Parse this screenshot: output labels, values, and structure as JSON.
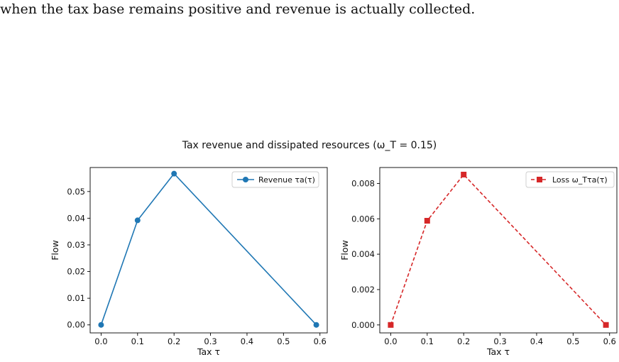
{
  "document": {
    "text_line": "when the tax base remains positive and revenue is actually collected."
  },
  "figure": {
    "title": "Tax revenue and dissipated resources (ω_T = 0.15)"
  },
  "chart_data": [
    {
      "type": "line",
      "x": [
        0.0,
        0.1,
        0.2,
        0.59
      ],
      "series": [
        {
          "name": "Revenue τa(τ)",
          "values": [
            0.0,
            0.0392,
            0.0567,
            0.0
          ],
          "color": "#1f77b4",
          "marker": "circle",
          "line": "solid"
        }
      ],
      "xlabel": "Tax τ",
      "ylabel": "Flow",
      "xlim": [
        -0.03,
        0.62
      ],
      "ylim": [
        -0.003,
        0.059
      ],
      "xticks": [
        0.0,
        0.1,
        0.2,
        0.3,
        0.4,
        0.5,
        0.6
      ],
      "xtick_labels": [
        "0.0",
        "0.1",
        "0.2",
        "0.3",
        "0.4",
        "0.5",
        "0.6"
      ],
      "yticks": [
        0.0,
        0.01,
        0.02,
        0.03,
        0.04,
        0.05
      ],
      "ytick_labels": [
        "0.00",
        "0.01",
        "0.02",
        "0.03",
        "0.04",
        "0.05"
      ],
      "grid": false,
      "legend": "upper right"
    },
    {
      "type": "line",
      "x": [
        0.0,
        0.1,
        0.2,
        0.59
      ],
      "series": [
        {
          "name": "Loss ω_Tτa(τ)",
          "values": [
            0.0,
            0.00589,
            0.0085,
            0.0
          ],
          "color": "#d62728",
          "marker": "square",
          "line": "dashed"
        }
      ],
      "xlabel": "Tax τ",
      "ylabel": "Flow",
      "xlim": [
        -0.03,
        0.62
      ],
      "ylim": [
        -0.00045,
        0.0089
      ],
      "xticks": [
        0.0,
        0.1,
        0.2,
        0.3,
        0.4,
        0.5,
        0.6
      ],
      "xtick_labels": [
        "0.0",
        "0.1",
        "0.2",
        "0.3",
        "0.4",
        "0.5",
        "0.6"
      ],
      "yticks": [
        0.0,
        0.002,
        0.004,
        0.006,
        0.008
      ],
      "ytick_labels": [
        "0.000",
        "0.002",
        "0.004",
        "0.006",
        "0.008"
      ],
      "grid": false,
      "legend": "upper right"
    }
  ]
}
